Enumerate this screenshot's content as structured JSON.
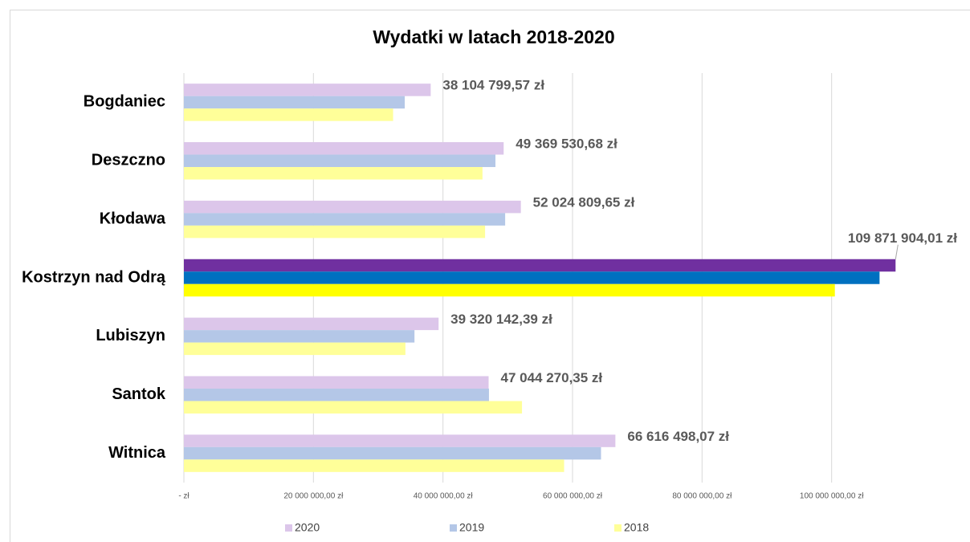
{
  "chart_data": {
    "type": "bar",
    "orientation": "horizontal",
    "title": "Wydatki w latach 2018-2020",
    "categories": [
      "Bogdaniec",
      "Deszczno",
      "Kłodawa",
      "Kostrzyn nad Odrą",
      "Lubiszyn",
      "Santok",
      "Witnica"
    ],
    "series": [
      {
        "name": "2020",
        "color": "#dcc6ea",
        "colors": [
          "#dcc6ea",
          "#dcc6ea",
          "#dcc6ea",
          "#7030a0",
          "#dcc6ea",
          "#dcc6ea",
          "#dcc6ea"
        ],
        "values": [
          38104799.57,
          49369530.68,
          52024809.65,
          109871904.01,
          39320142.39,
          47044270.35,
          66616498.07
        ],
        "value_labels": [
          "38 104 799,57 zł",
          "49 369 530,68 zł",
          "52 024 809,65 zł",
          "109 871 904,01 zł",
          "39 320 142,39 zł",
          "47 044 270,35 zł",
          "66 616 498,07 zł"
        ]
      },
      {
        "name": "2019",
        "color": "#b4c7e7",
        "colors": [
          "#b4c7e7",
          "#b4c7e7",
          "#b4c7e7",
          "#0070c0",
          "#b4c7e7",
          "#b4c7e7",
          "#b4c7e7"
        ],
        "values": [
          34100000,
          48100000,
          49600000,
          107400000,
          35600000,
          47100000,
          64400000
        ]
      },
      {
        "name": "2018",
        "color": "#ffff99",
        "colors": [
          "#ffff99",
          "#ffff99",
          "#ffff99",
          "#ffff00",
          "#ffff99",
          "#ffff99",
          "#ffff99"
        ],
        "values": [
          32300000,
          46100000,
          46500000,
          100500000,
          34200000,
          52200000,
          58700000
        ]
      }
    ],
    "xlim": [
      0,
      120000000
    ],
    "xticks": [
      {
        "value": 0,
        "label": "-   zł"
      },
      {
        "value": 20000000,
        "label": "20 000 000,00 zł"
      },
      {
        "value": 40000000,
        "label": "40 000 000,00 zł"
      },
      {
        "value": 60000000,
        "label": "60 000 000,00 zł"
      },
      {
        "value": 80000000,
        "label": "80 000 000,00 zł"
      },
      {
        "value": 100000000,
        "label": "100 000 000,00 zł"
      }
    ],
    "grid": true,
    "legend": "bottom"
  }
}
